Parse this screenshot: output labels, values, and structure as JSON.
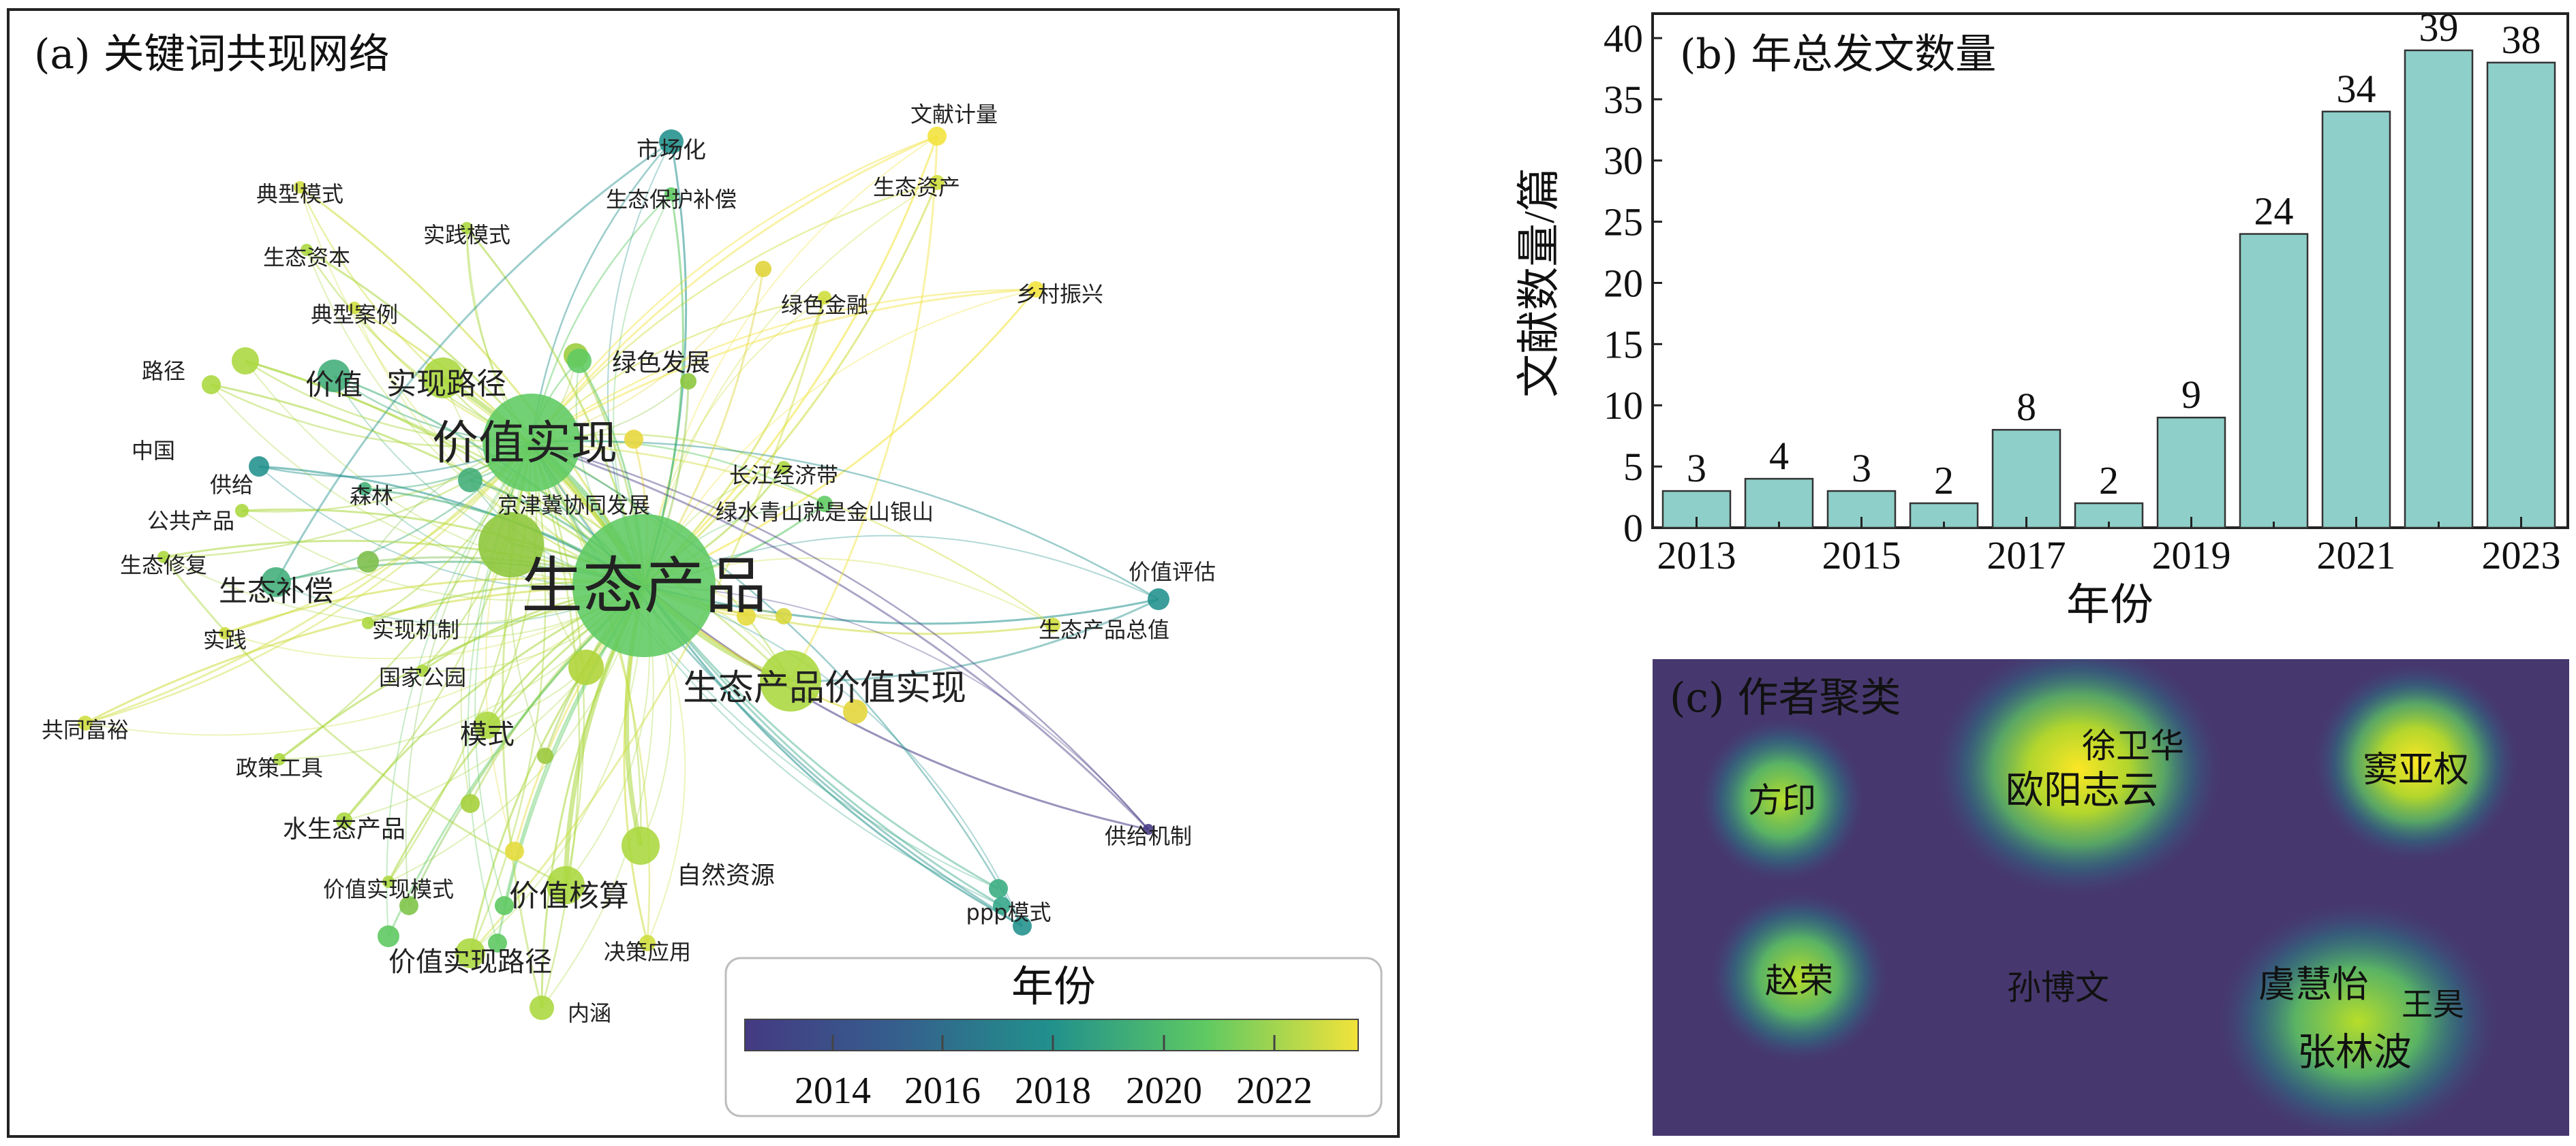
{
  "panel_a": {
    "title": "(a) 关键词共现网络",
    "legend": {
      "title": "年份",
      "ticks": [
        "2014",
        "2016",
        "2018",
        "2020",
        "2022"
      ],
      "colors": [
        "#440154",
        "#3b528b",
        "#21918c",
        "#5ec962",
        "#fde725"
      ]
    },
    "keywords": [
      {
        "label": "生态产品",
        "year": 2020
      },
      {
        "label": "价值实现",
        "year": 2020
      },
      {
        "label": "生态产品价值实现",
        "year": 2021
      },
      {
        "label": "生态补偿",
        "year": 2019
      },
      {
        "label": "实现路径",
        "year": 2021
      },
      {
        "label": "价值核算",
        "year": 2021
      },
      {
        "label": "价值实现路径",
        "year": 2021
      },
      {
        "label": "价值",
        "year": 2019
      },
      {
        "label": "模式",
        "year": 2021
      },
      {
        "label": "市场化",
        "year": 2018
      },
      {
        "label": "文献计量",
        "year": 2023
      },
      {
        "label": "生态资产",
        "year": 2022
      },
      {
        "label": "生态保护补偿",
        "year": 2020
      },
      {
        "label": "典型模式",
        "year": 2022
      },
      {
        "label": "实践模式",
        "year": 2021
      },
      {
        "label": "生态资本",
        "year": 2021
      },
      {
        "label": "典型案例",
        "year": 2022
      },
      {
        "label": "绿色金融",
        "year": 2022
      },
      {
        "label": "乡村振兴",
        "year": 2023
      },
      {
        "label": "绿色发展",
        "year": 2020
      },
      {
        "label": "路径",
        "year": 2021
      },
      {
        "label": "中国",
        "year": 2021
      },
      {
        "label": "供给",
        "year": 2018
      },
      {
        "label": "公共产品",
        "year": 2021
      },
      {
        "label": "森林",
        "year": 2019
      },
      {
        "label": "京津冀协同发展",
        "year": 2019
      },
      {
        "label": "长江经济带",
        "year": 2021
      },
      {
        "label": "绿水青山就是金山银山",
        "year": 2020
      },
      {
        "label": "生态修复",
        "year": 2021
      },
      {
        "label": "实践",
        "year": 2022
      },
      {
        "label": "实现机制",
        "year": 2021
      },
      {
        "label": "国家公园",
        "year": 2021
      },
      {
        "label": "共同富裕",
        "year": 2022
      },
      {
        "label": "政策工具",
        "year": 2021
      },
      {
        "label": "水生态产品",
        "year": 2021
      },
      {
        "label": "价值实现模式",
        "year": 2021
      },
      {
        "label": "自然资源",
        "year": 2021
      },
      {
        "label": "决策应用",
        "year": 2022
      },
      {
        "label": "内涵",
        "year": 2021
      },
      {
        "label": "价值评估",
        "year": 2018
      },
      {
        "label": "生态产品总值",
        "year": 2022
      },
      {
        "label": "供给机制",
        "year": 2013
      },
      {
        "label": "ppp模式",
        "year": 2018
      }
    ]
  },
  "panel_b": {
    "title": "(b) 年总发文数量",
    "chart_data": {
      "type": "bar",
      "categories": [
        "2013",
        "2014",
        "2015",
        "2016",
        "2017",
        "2018",
        "2019",
        "2020",
        "2021",
        "2022",
        "2023"
      ],
      "values": [
        3,
        4,
        3,
        2,
        8,
        2,
        9,
        24,
        34,
        39,
        38
      ],
      "xlabel": "年份",
      "ylabel": "文献数量/篇",
      "ylim": [
        0,
        42
      ],
      "yticks": [
        "0",
        "5",
        "10",
        "15",
        "20",
        "25",
        "30",
        "35",
        "40"
      ],
      "xticks": [
        "2013",
        "2015",
        "2017",
        "2019",
        "2021",
        "2023"
      ],
      "bar_color": "#8ecfc9",
      "grid": false
    }
  },
  "panel_c": {
    "title": "(c) 作者聚类",
    "authors": [
      "徐卫华",
      "欧阳志云",
      "窦亚权",
      "方印",
      "赵荣",
      "孙博文",
      "虞慧怡",
      "王昊",
      "张林波"
    ]
  }
}
